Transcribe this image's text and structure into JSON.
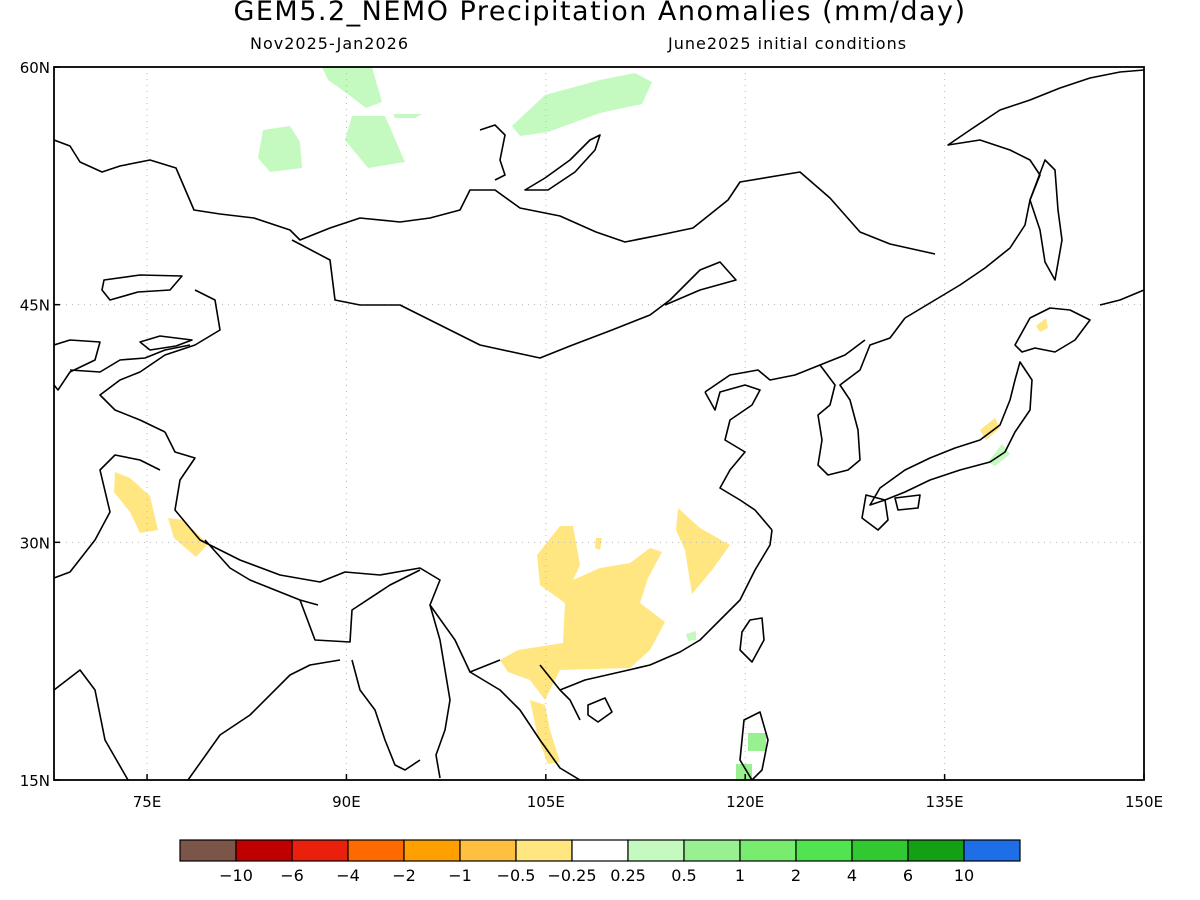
{
  "title": "GEM5.2_NEMO Precipitation Anomalies (mm/day)",
  "subtitle_left": "Nov2025-Jan2026",
  "subtitle_right": "June2025 initial conditions",
  "map": {
    "lon_range": [
      68,
      150
    ],
    "lat_range": [
      15,
      60
    ],
    "lon_ticks": [
      "75E",
      "90E",
      "105E",
      "120E",
      "135E",
      "150E"
    ],
    "lat_ticks": [
      "15N",
      "30N",
      "45N",
      "60N"
    ]
  },
  "colorbar": {
    "colors": [
      "#7b5548",
      "#c00000",
      "#e8200c",
      "#ff6a00",
      "#ffa000",
      "#ffc040",
      "#ffe680",
      "#ffffff",
      "#c4fac0",
      "#98f090",
      "#78ec6e",
      "#50e450",
      "#32c832",
      "#14a014",
      "#1e6ee8"
    ],
    "labels": [
      "-10",
      "-6",
      "-4",
      "-2",
      "-1",
      "-0.5",
      "-0.25",
      "0.25",
      "0.5",
      "1",
      "2",
      "4",
      "6",
      "10"
    ]
  }
}
